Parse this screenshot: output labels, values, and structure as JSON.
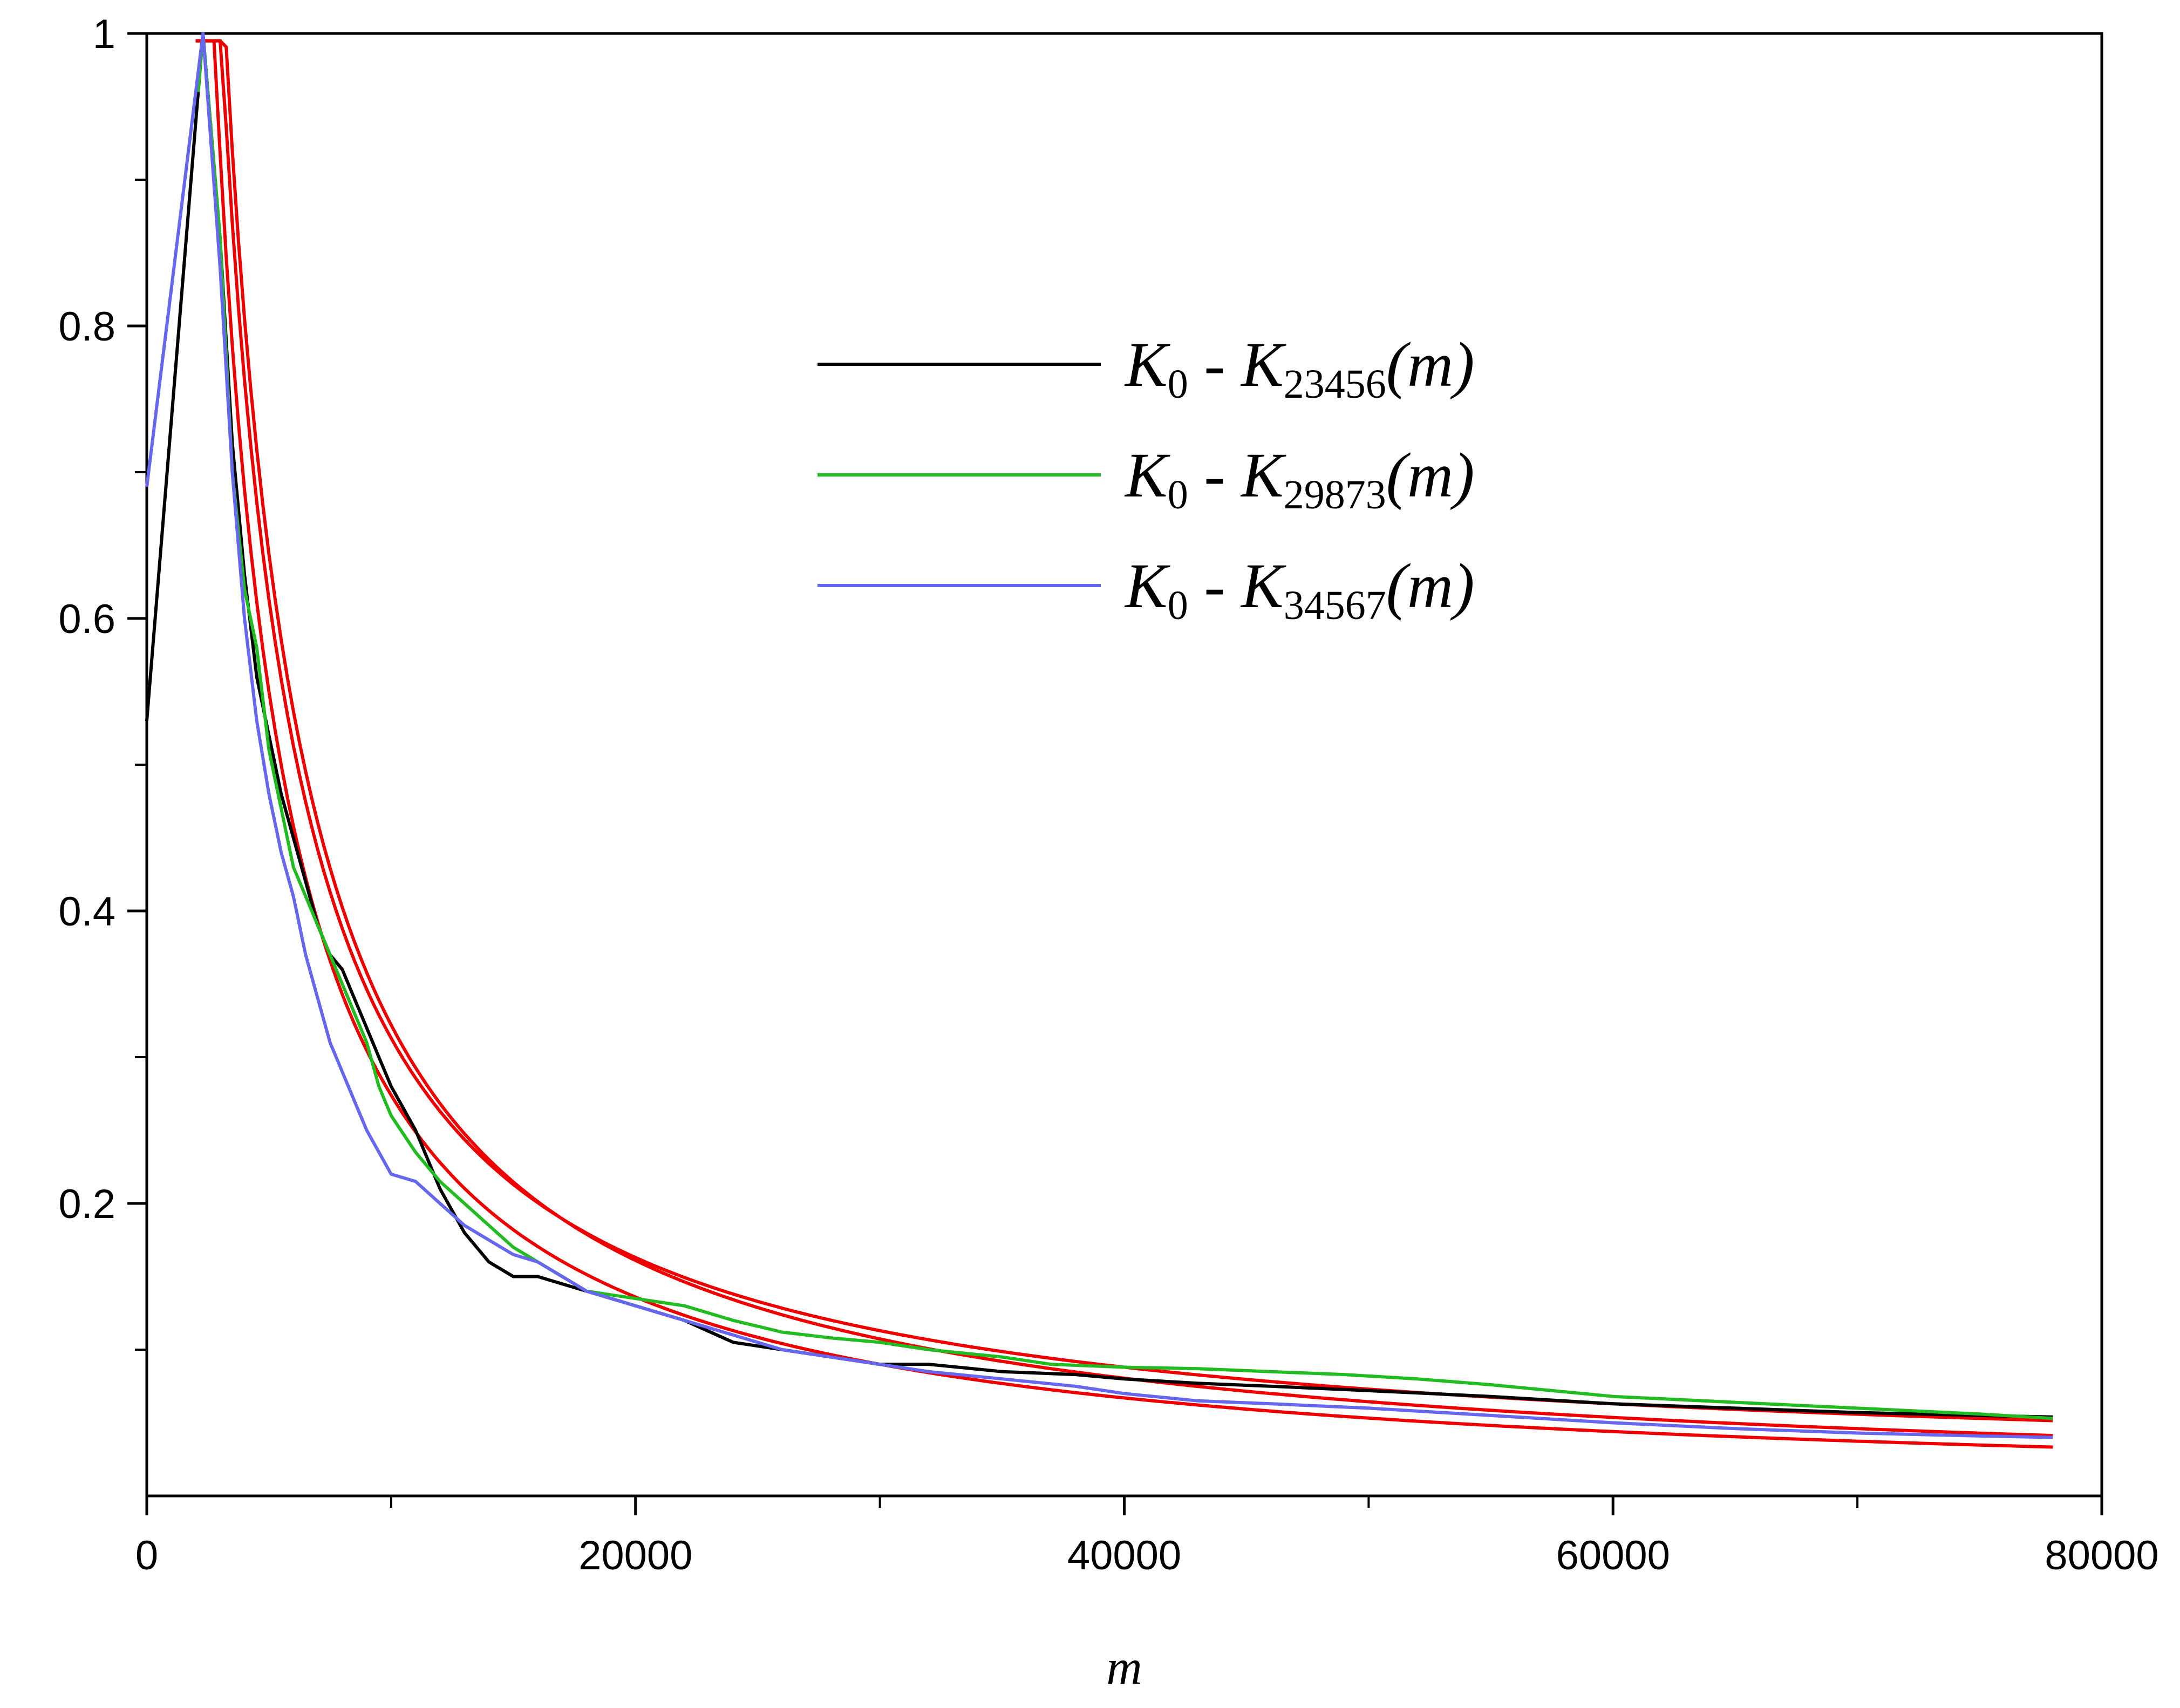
{
  "chart_data": {
    "type": "line",
    "title": "",
    "xlabel": "m",
    "ylabel": "",
    "xlim": [
      0,
      80000
    ],
    "ylim": [
      0,
      1
    ],
    "grid": false,
    "legend_position": "upper-right",
    "x_ticks": [
      0,
      20000,
      40000,
      60000,
      80000
    ],
    "x_tick_labels": [
      "0",
      "20000",
      "40000",
      "60000",
      "80000"
    ],
    "x_minor_ticks": [
      10000,
      30000,
      50000,
      70000
    ],
    "y_ticks": [
      0.2,
      0.4,
      0.6,
      0.8,
      1
    ],
    "y_tick_labels": [
      "0.2",
      "0.4",
      "0.6",
      "0.8",
      "1"
    ],
    "y_minor_ticks": [
      0.1,
      0.3,
      0.5,
      0.7,
      0.9
    ],
    "series": [
      {
        "name": "K0 - K23456(m)",
        "label_main": "K",
        "label_sub0": "0",
        "label_dash": "-",
        "label_sub": "23456",
        "label_arg": "(m)",
        "color": "#000000",
        "x": [
          0,
          2300,
          3000,
          3500,
          4000,
          4500,
          5000,
          5500,
          6000,
          6500,
          7000,
          7500,
          8000,
          8500,
          9000,
          9500,
          10000,
          11000,
          12000,
          13000,
          14000,
          15000,
          16000,
          17000,
          18000,
          20000,
          22000,
          24000,
          26000,
          28000,
          30000,
          32000,
          35000,
          38000,
          40000,
          43000,
          46000,
          50000,
          55000,
          60000,
          65000,
          70000,
          75000,
          78000
        ],
        "y": [
          0.53,
          1.0,
          0.86,
          0.72,
          0.63,
          0.56,
          0.52,
          0.48,
          0.45,
          0.42,
          0.39,
          0.37,
          0.36,
          0.34,
          0.32,
          0.3,
          0.28,
          0.25,
          0.21,
          0.18,
          0.16,
          0.15,
          0.15,
          0.145,
          0.14,
          0.13,
          0.12,
          0.105,
          0.1,
          0.095,
          0.09,
          0.09,
          0.085,
          0.083,
          0.08,
          0.077,
          0.075,
          0.072,
          0.068,
          0.063,
          0.06,
          0.057,
          0.055,
          0.054
        ]
      },
      {
        "name": "K0 - K29873(m)",
        "label_main": "K",
        "label_sub0": "0",
        "label_dash": "-",
        "label_sub": "29873",
        "label_arg": "(m)",
        "color": "#22bb22",
        "x": [
          2100,
          2300,
          3000,
          3500,
          4000,
          4500,
          5000,
          5500,
          6000,
          6500,
          7000,
          7500,
          8000,
          8500,
          9000,
          9500,
          10000,
          11000,
          12000,
          13000,
          14000,
          15000,
          16000,
          17000,
          18000,
          20000,
          22000,
          24000,
          26000,
          28000,
          30000,
          32000,
          35000,
          37000,
          40000,
          43000,
          46000,
          49000,
          52000,
          55000,
          60000,
          65000,
          70000,
          75000,
          78000
        ],
        "y": [
          0.96,
          1.0,
          0.86,
          0.7,
          0.62,
          0.58,
          0.51,
          0.47,
          0.43,
          0.41,
          0.39,
          0.37,
          0.35,
          0.33,
          0.31,
          0.28,
          0.26,
          0.235,
          0.215,
          0.2,
          0.185,
          0.17,
          0.16,
          0.15,
          0.14,
          0.135,
          0.13,
          0.12,
          0.112,
          0.108,
          0.105,
          0.1,
          0.095,
          0.09,
          0.088,
          0.087,
          0.085,
          0.083,
          0.08,
          0.076,
          0.068,
          0.064,
          0.06,
          0.056,
          0.053
        ]
      },
      {
        "name": "K0 - K34567(m)",
        "label_main": "K",
        "label_sub0": "0",
        "label_dash": "-",
        "label_sub": "34567",
        "label_arg": "(m)",
        "color": "#6666ee",
        "x": [
          0,
          2300,
          3000,
          3500,
          4000,
          4500,
          5000,
          5500,
          6000,
          6500,
          7000,
          7500,
          8000,
          8500,
          9000,
          10000,
          11000,
          12000,
          13000,
          14000,
          15000,
          16000,
          17000,
          18000,
          20000,
          22000,
          24000,
          26000,
          28000,
          30000,
          32000,
          35000,
          38000,
          40000,
          43000,
          46000,
          50000,
          55000,
          60000,
          65000,
          70000,
          75000,
          78000
        ],
        "y": [
          0.69,
          1.0,
          0.84,
          0.7,
          0.6,
          0.53,
          0.48,
          0.44,
          0.41,
          0.37,
          0.34,
          0.31,
          0.29,
          0.27,
          0.25,
          0.22,
          0.215,
          0.2,
          0.185,
          0.175,
          0.165,
          0.16,
          0.15,
          0.14,
          0.13,
          0.12,
          0.11,
          0.1,
          0.095,
          0.09,
          0.085,
          0.08,
          0.075,
          0.07,
          0.065,
          0.063,
          0.06,
          0.055,
          0.05,
          0.046,
          0.043,
          0.041,
          0.04
        ]
      }
    ],
    "fit_curves": {
      "color": "#ee0000",
      "note_ids": [
        "fit-1",
        "fit-2",
        "fit-3"
      ],
      "x_start": 2000,
      "x_end": 78000,
      "amplitudes": [
        3220,
        3000,
        2760
      ],
      "offsets": [
        0,
        0.013,
        -0.002
      ],
      "exponent": 1.0
    }
  }
}
